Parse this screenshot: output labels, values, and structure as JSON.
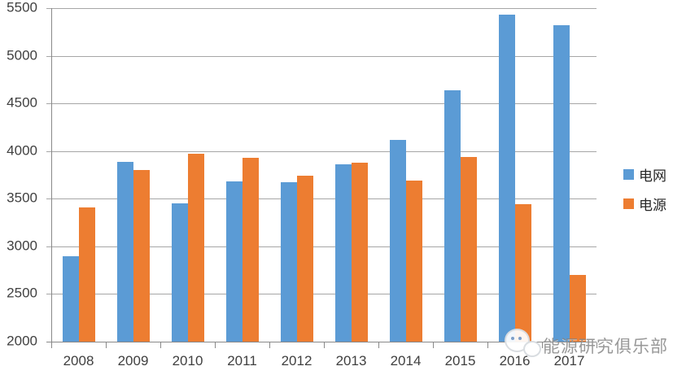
{
  "chart_data": {
    "type": "bar",
    "title": "",
    "xlabel": "",
    "ylabel": "",
    "categories": [
      "2008",
      "2009",
      "2010",
      "2011",
      "2012",
      "2013",
      "2014",
      "2015",
      "2016",
      "2017"
    ],
    "series": [
      {
        "name": "电网",
        "color": "#5B9BD5",
        "values": [
          2900,
          3890,
          3450,
          3680,
          3670,
          3860,
          4120,
          4640,
          5430,
          5320
        ]
      },
      {
        "name": "电源",
        "color": "#ED7D31",
        "values": [
          3410,
          3800,
          3970,
          3930,
          3740,
          3880,
          3690,
          3940,
          3440,
          2700
        ]
      }
    ],
    "ylim": [
      2000,
      5500
    ],
    "ytick_step": 500,
    "ytick_labels": [
      "5500",
      "5000",
      "4500",
      "4000",
      "3500",
      "3000",
      "2500",
      "2000"
    ],
    "grid": true,
    "legend_position": "right",
    "gridline_color": "#a6a6a6",
    "axis_color": "#898989",
    "label_color": "#404040"
  },
  "watermark": {
    "text": "能源研究俱乐部",
    "icon": "wechat-icon"
  }
}
